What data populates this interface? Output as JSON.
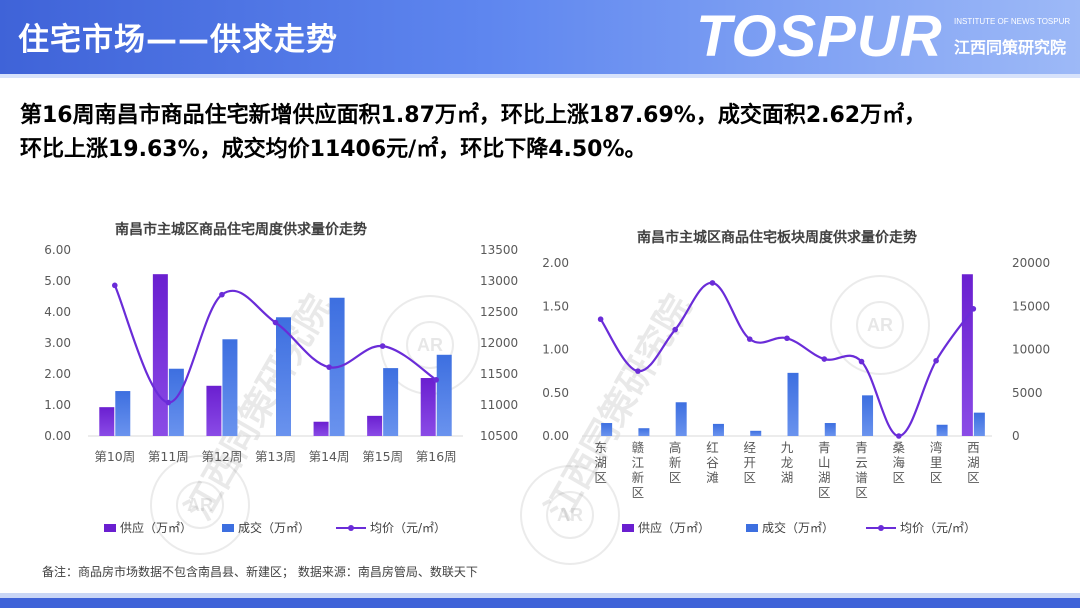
{
  "header": {
    "title": "住宅市场——供求走势",
    "logo": "TOSPUR",
    "logo_subtitle_en": "INSTITUTE OF NEWS TOSPUR",
    "logo_subtitle_cn": "江西同策研究院"
  },
  "headline": {
    "line1": "第16周南昌市商品住宅新增供应面积1.87万㎡，环比上涨187.69%，成交面积2.62万㎡，",
    "line2": "环比上涨19.63%，成交均价11406元/㎡，环比下降4.50%。"
  },
  "watermark": {
    "text": "江西同策研究院",
    "seal_letters": "AR"
  },
  "colors": {
    "supply": "#6a1fd0",
    "deal": "#3d6fe0",
    "price": "#6a2cd8"
  },
  "legend": {
    "supply": "供应（万㎡）",
    "deal": "成交（万㎡）",
    "price": "均价（元/㎡）"
  },
  "footnote": "备注：商品房市场数据不包含南昌县、新建区；  数据来源：南昌房管局、数联天下",
  "chart_data": [
    {
      "type": "bar",
      "title": "南昌市主城区商品住宅周度供求量价走势",
      "categories": [
        "第10周",
        "第11周",
        "第12周",
        "第13周",
        "第14周",
        "第15周",
        "第16周"
      ],
      "series": [
        {
          "name": "供应（万㎡）",
          "kind": "bar",
          "axis": "left",
          "values": [
            0.93,
            5.22,
            1.62,
            0,
            0.46,
            0.65,
            1.87
          ]
        },
        {
          "name": "成交（万㎡）",
          "kind": "bar",
          "axis": "left",
          "values": [
            1.45,
            2.17,
            3.12,
            3.83,
            4.46,
            2.19,
            2.62
          ]
        },
        {
          "name": "均价（元/㎡）",
          "kind": "line",
          "axis": "right",
          "values": [
            12930,
            11040,
            12780,
            12330,
            11610,
            11950,
            11406
          ]
        }
      ],
      "y_left": {
        "min": 0,
        "max": 6,
        "ticks": [
          "0.00",
          "1.00",
          "2.00",
          "3.00",
          "4.00",
          "5.00",
          "6.00"
        ]
      },
      "y_right": {
        "min": 10500,
        "max": 13500,
        "ticks": [
          "10500",
          "11000",
          "11500",
          "12000",
          "12500",
          "13000",
          "13500"
        ]
      },
      "legend_position": "bottom",
      "grid": false
    },
    {
      "type": "bar",
      "title": "南昌市主城区商品住宅板块周度供求量价走势",
      "categories": [
        "东湖区",
        "赣江新区",
        "高新区",
        "红谷滩",
        "经开区",
        "九龙湖",
        "青山湖区",
        "青云谱区",
        "桑海区",
        "湾里区",
        "西湖区"
      ],
      "series": [
        {
          "name": "供应（万㎡）",
          "kind": "bar",
          "axis": "left",
          "values": [
            0,
            0,
            0,
            0,
            0,
            0,
            0,
            0,
            0,
            0,
            1.87
          ]
        },
        {
          "name": "成交（万㎡）",
          "kind": "bar",
          "axis": "left",
          "values": [
            0.15,
            0.09,
            0.39,
            0.14,
            0.06,
            0.73,
            0.15,
            0.47,
            0,
            0.13,
            0.27
          ]
        },
        {
          "name": "均价（元/㎡）",
          "kind": "line",
          "axis": "right",
          "values": [
            13500,
            7500,
            12300,
            17700,
            11200,
            11300,
            8900,
            8600,
            0,
            8700,
            14700
          ]
        }
      ],
      "y_left": {
        "min": 0,
        "max": 2,
        "ticks": [
          "0.00",
          "0.50",
          "1.00",
          "1.50",
          "2.00"
        ]
      },
      "y_right": {
        "min": 0,
        "max": 20000,
        "ticks": [
          "0",
          "5000",
          "10000",
          "15000",
          "20000"
        ]
      },
      "legend_position": "bottom",
      "grid": false
    }
  ]
}
